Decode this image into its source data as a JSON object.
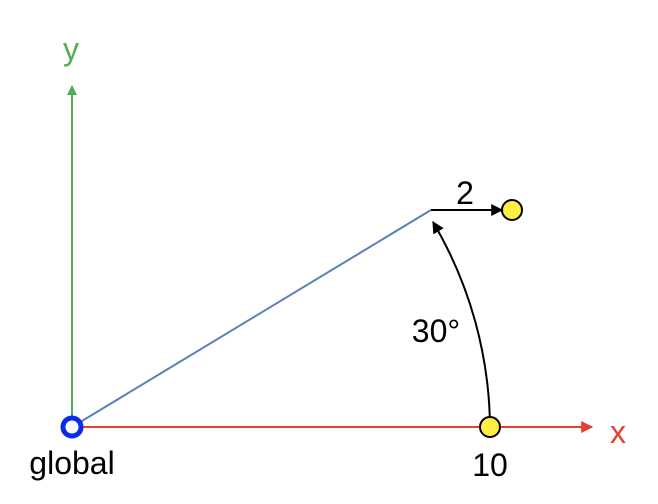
{
  "axes": {
    "x_label": "x",
    "y_label": "y",
    "x_color": "#e8402f",
    "y_color": "#4caf50"
  },
  "origin": {
    "label": "global",
    "ring_color": "#0a2be8"
  },
  "vector": {
    "color": "#5b7fb8"
  },
  "annotations": {
    "offset_label": "2",
    "angle_label": "30°",
    "distance_label": "10"
  },
  "points": {
    "fill_color": "#ffee44",
    "stroke_color": "#000000"
  }
}
